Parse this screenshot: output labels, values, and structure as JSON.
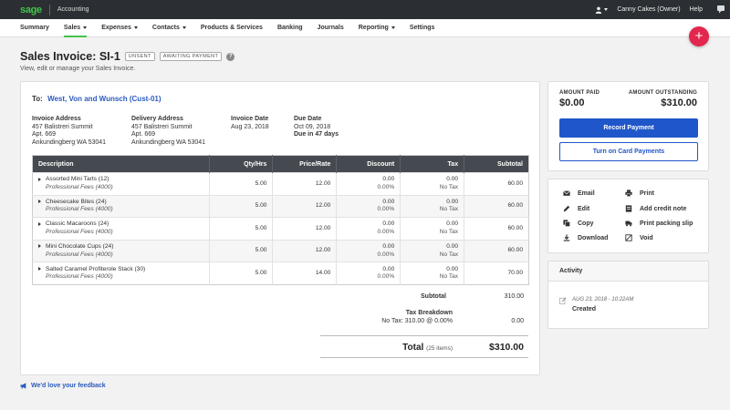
{
  "topbar": {
    "logo": "sage",
    "app_name": "Accounting",
    "user": "Canny Cakes (Owner)",
    "help": "Help",
    "icons": [
      "user-icon",
      "chat-icon"
    ]
  },
  "nav": {
    "items": [
      {
        "label": "Summary",
        "dropdown": false
      },
      {
        "label": "Sales",
        "dropdown": true,
        "active": true
      },
      {
        "label": "Expenses",
        "dropdown": true
      },
      {
        "label": "Contacts",
        "dropdown": true
      },
      {
        "label": "Products & Services",
        "dropdown": false
      },
      {
        "label": "Banking",
        "dropdown": false
      },
      {
        "label": "Journals",
        "dropdown": false
      },
      {
        "label": "Reporting",
        "dropdown": true
      },
      {
        "label": "Settings",
        "dropdown": false
      }
    ],
    "fab": "+"
  },
  "header": {
    "title": "Sales Invoice: SI-1",
    "badges": [
      "UNSENT",
      "AWAITING PAYMENT"
    ],
    "subtitle": "View, edit or manage your Sales Invoice."
  },
  "invoice": {
    "to_label": "To:",
    "customer": "West, Von and Wunsch (Cust-01)",
    "invoice_address": {
      "heading": "Invoice Address",
      "line1": "457 Balistreri Summit",
      "line2": "Apt. 669",
      "line3": "Ankundingberg WA 53041"
    },
    "delivery_address": {
      "heading": "Delivery Address",
      "line1": "457 Balistreri Summit",
      "line2": "Apt. 669",
      "line3": "Ankundingberg WA 53041"
    },
    "invoice_date": {
      "heading": "Invoice Date",
      "value": "Aug 23, 2018"
    },
    "due_date": {
      "heading": "Due Date",
      "value": "Oct 09, 2018",
      "note": "Due in 47 days"
    },
    "columns": [
      "Description",
      "Qty/Hrs",
      "Price/Rate",
      "Discount",
      "Tax",
      "Subtotal"
    ],
    "rows": [
      {
        "desc": "Assorted Mini Tarts (12)",
        "ledger": "Professional Fees (4000)",
        "qty": "5.00",
        "price": "12.00",
        "discount": "0.00",
        "discount_pct": "0.00%",
        "tax": "0.00",
        "tax_label": "No Tax",
        "subtotal": "60.00"
      },
      {
        "desc": "Cheesecake Bites (24)",
        "ledger": "Professional Fees (4000)",
        "qty": "5.00",
        "price": "12.00",
        "discount": "0.00",
        "discount_pct": "0.00%",
        "tax": "0.00",
        "tax_label": "No Tax",
        "subtotal": "60.00"
      },
      {
        "desc": "Classic Macaroons (24)",
        "ledger": "Professional Fees (4000)",
        "qty": "5.00",
        "price": "12.00",
        "discount": "0.00",
        "discount_pct": "0.00%",
        "tax": "0.00",
        "tax_label": "No Tax",
        "subtotal": "60.00"
      },
      {
        "desc": "Mini Chocolate Cups (24)",
        "ledger": "Professional Fees (4000)",
        "qty": "5.00",
        "price": "12.00",
        "discount": "0.00",
        "discount_pct": "0.00%",
        "tax": "0.00",
        "tax_label": "No Tax",
        "subtotal": "60.00"
      },
      {
        "desc": "Salted Caramel Profiterole Stack (30)",
        "ledger": "Professional Fees (4000)",
        "qty": "5.00",
        "price": "14.00",
        "discount": "0.00",
        "discount_pct": "0.00%",
        "tax": "0.00",
        "tax_label": "No Tax",
        "subtotal": "70.00"
      }
    ],
    "subtotal_label": "Subtotal",
    "subtotal_value": "310.00",
    "tax_breakdown_label": "Tax Breakdown",
    "tax_breakdown_line": "No Tax: 310.00 @ 0.00%",
    "tax_breakdown_value": "0.00",
    "total_label": "Total",
    "total_items": "(25 items)",
    "total_value": "$310.00"
  },
  "payment": {
    "amount_paid_label": "AMOUNT PAID",
    "amount_paid": "$0.00",
    "amount_outstanding_label": "AMOUNT OUTSTANDING",
    "amount_outstanding": "$310.00",
    "record_payment": "Record Payment",
    "turn_on_card": "Turn on Card Payments"
  },
  "actions": {
    "email": "Email",
    "print": "Print",
    "edit": "Edit",
    "add_credit_note": "Add credit note",
    "copy": "Copy",
    "print_packing_slip": "Print packing slip",
    "download": "Download",
    "void": "Void"
  },
  "activity": {
    "heading": "Activity",
    "date": "AUG 23, 2018 - 10:22AM",
    "event": "Created"
  },
  "footer": {
    "feedback": "We'd love your feedback"
  },
  "colors": {
    "brand_green": "#42c44a",
    "primary_blue": "#1f56c9",
    "fab_red": "#e3264d",
    "topbar": "#2b2f33"
  }
}
